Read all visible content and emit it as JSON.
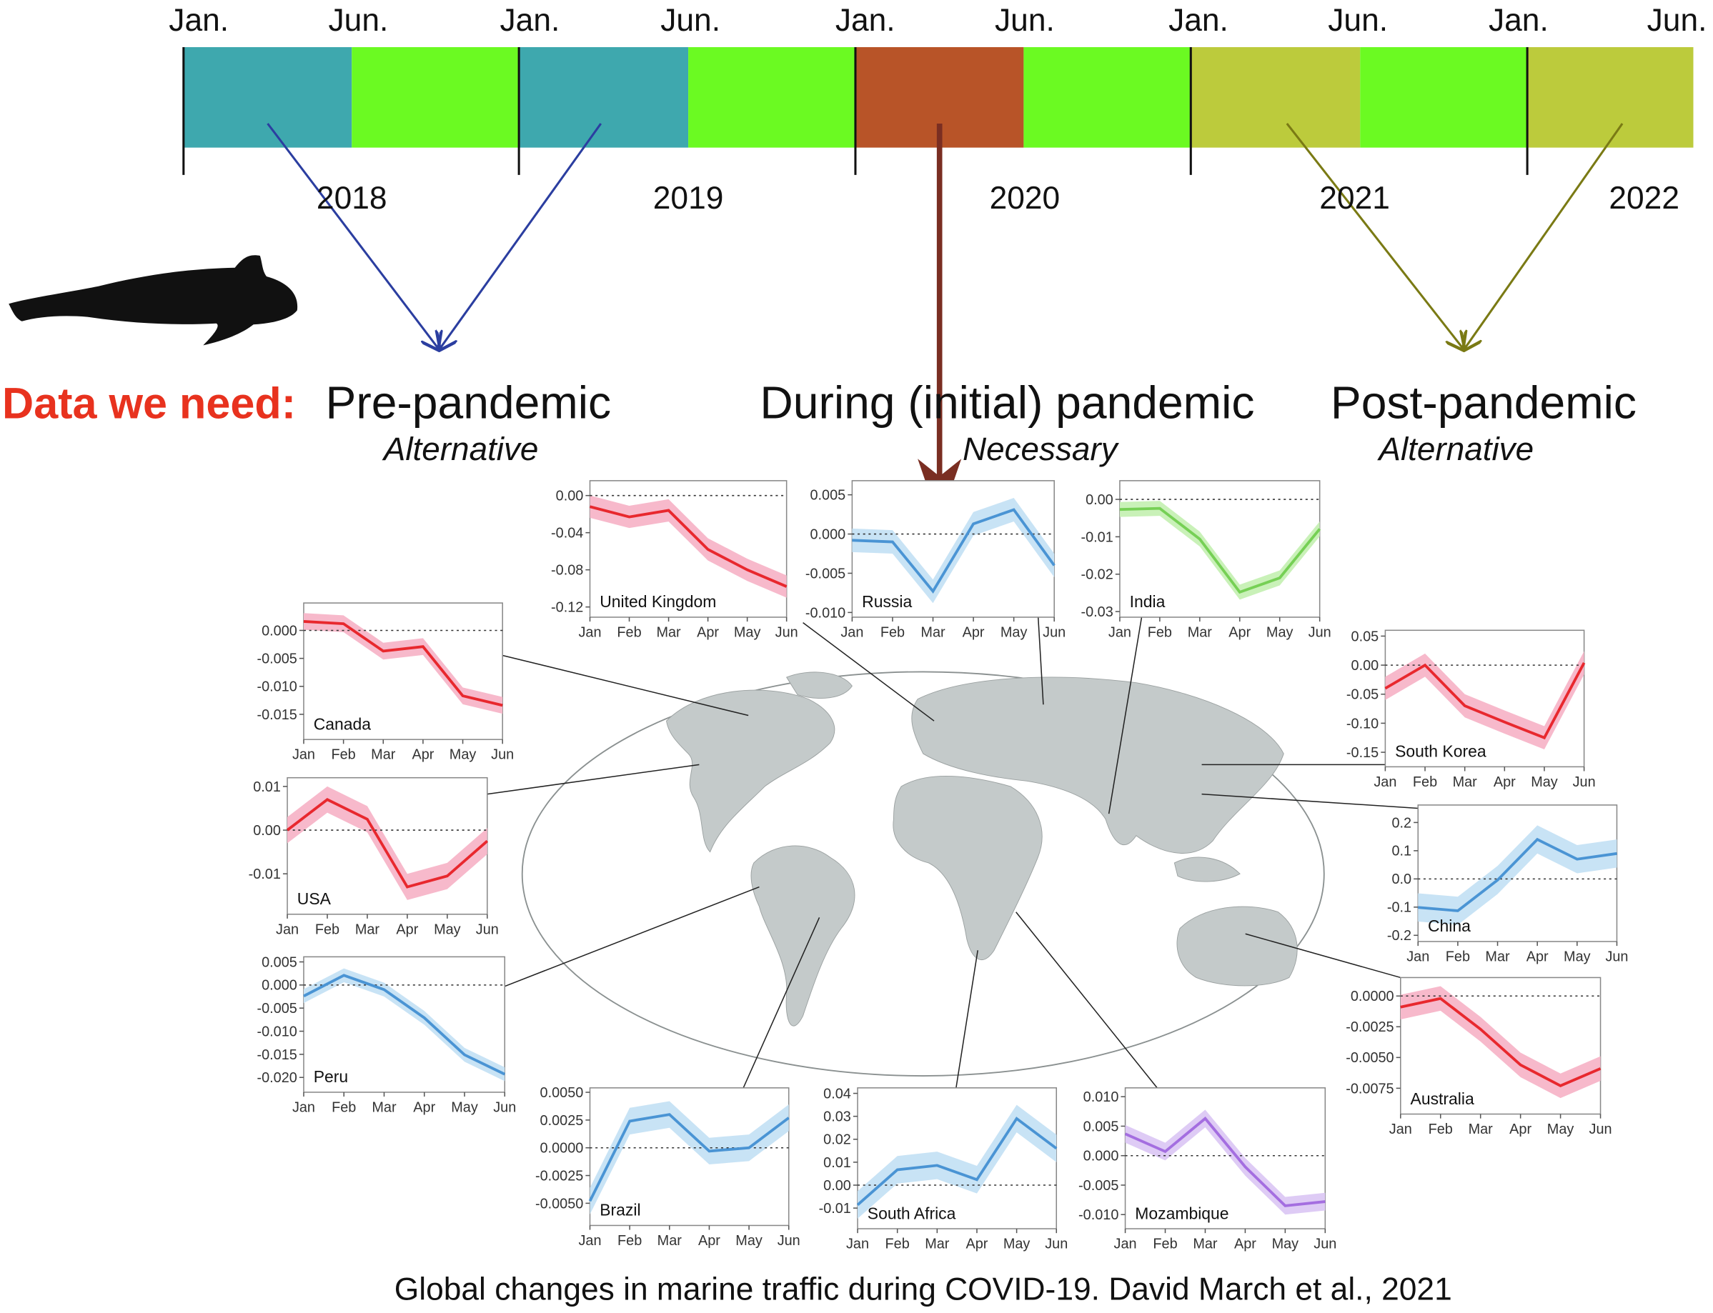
{
  "timeline": {
    "months": [
      "Jan.",
      "Jun.",
      "Jan.",
      "Jun.",
      "Jan.",
      "Jun.",
      "Jan.",
      "Jun.",
      "Jan.",
      "Jun."
    ],
    "years": [
      "2018",
      "2019",
      "2020",
      "2021",
      "2022"
    ]
  },
  "headings": {
    "need": "Data we need:",
    "pre": "Pre-pandemic",
    "pre_note": "Alternative",
    "during": "During (initial) pandemic",
    "during_note": "Necessary",
    "post": "Post-pandemic",
    "post_note": "Alternative"
  },
  "caption": "Global changes in marine traffic during COVID-19. David March et al., 2021",
  "chart_data": [
    {
      "type": "line",
      "title": "United Kingdom",
      "categories": [
        "Jan",
        "Feb",
        "Mar",
        "Apr",
        "May",
        "Jun"
      ],
      "ylim": [
        -0.131,
        0.016
      ],
      "yticks": [
        {
          "value": 0,
          "label": "0.00"
        },
        -0.04,
        -0.08,
        -0.12
      ],
      "series": [
        {
          "color": "#e8282e",
          "band_color": "#f7b9cb",
          "values": [
            -0.012,
            -0.023,
            -0.016,
            -0.058,
            -0.08,
            -0.098
          ],
          "upper": [
            0.0,
            -0.011,
            -0.004,
            -0.046,
            -0.068,
            -0.086
          ],
          "lower": [
            -0.024,
            -0.035,
            -0.028,
            -0.07,
            -0.092,
            -0.11
          ]
        }
      ]
    },
    {
      "type": "line",
      "title": "Russia",
      "categories": [
        "Jan",
        "Feb",
        "Mar",
        "Apr",
        "May",
        "Jun"
      ],
      "ylim": [
        -0.0106,
        0.0068
      ],
      "yticks": [
        0.005,
        {
          "value": 0,
          "label": "0.000"
        },
        -0.005,
        {
          "value": -0.01,
          "label": "-0.010"
        }
      ],
      "series": [
        {
          "color": "#4a94d4",
          "band_color": "#c8e3f5",
          "values": [
            -0.0008,
            -0.001,
            -0.0073,
            0.0013,
            0.0031,
            -0.004
          ],
          "upper": [
            0.0007,
            0.0005,
            -0.0058,
            0.0028,
            0.0046,
            -0.0025
          ],
          "lower": [
            -0.0023,
            -0.0025,
            -0.0088,
            -0.0002,
            0.0016,
            -0.0055
          ]
        }
      ]
    },
    {
      "type": "line",
      "title": "India",
      "categories": [
        "Jan",
        "Feb",
        "Mar",
        "Apr",
        "May",
        "Jun"
      ],
      "ylim": [
        -0.0315,
        0.005
      ],
      "yticks": [
        {
          "value": 0,
          "label": "0.00"
        },
        -0.01,
        -0.02,
        -0.03
      ],
      "series": [
        {
          "color": "#76d055",
          "band_color": "#c9f1b8",
          "values": [
            -0.0027,
            -0.0024,
            -0.0106,
            -0.0248,
            -0.021,
            -0.0079
          ],
          "upper": [
            -0.0007,
            -0.0004,
            -0.0086,
            -0.0228,
            -0.019,
            -0.0059
          ],
          "lower": [
            -0.0047,
            -0.0044,
            -0.0126,
            -0.0268,
            -0.023,
            -0.0099
          ]
        }
      ]
    },
    {
      "type": "line",
      "title": "Canada",
      "categories": [
        "Jan",
        "Feb",
        "Mar",
        "Apr",
        "May",
        "Jun"
      ],
      "ylim": [
        -0.0195,
        0.0049
      ],
      "yticks": [
        {
          "value": 0,
          "label": "0.000"
        },
        -0.005,
        {
          "value": -0.01,
          "label": "-0.010"
        },
        -0.015
      ],
      "series": [
        {
          "color": "#e8282e",
          "band_color": "#f7b9cb",
          "values": [
            0.0016,
            0.0012,
            -0.0037,
            -0.0029,
            -0.0117,
            -0.0134
          ],
          "upper": [
            0.0031,
            0.0027,
            -0.0022,
            -0.0014,
            -0.0102,
            -0.0119
          ],
          "lower": [
            0.0001,
            -0.0003,
            -0.0052,
            -0.0044,
            -0.0132,
            -0.0149
          ]
        }
      ]
    },
    {
      "type": "line",
      "title": "USA",
      "categories": [
        "Jan",
        "Feb",
        "Mar",
        "Apr",
        "May",
        "Jun"
      ],
      "ylim": [
        -0.01925,
        0.012
      ],
      "yticks": [
        0.01,
        {
          "value": 0,
          "label": "0.00"
        },
        -0.01
      ],
      "series": [
        {
          "color": "#e8282e",
          "band_color": "#f7b9cb",
          "values": [
            0,
            0.007,
            0.0025,
            -0.013,
            -0.0105,
            -0.0025
          ],
          "upper": [
            0.003,
            0.01,
            0.0055,
            -0.01,
            -0.0075,
            0.0005
          ],
          "lower": [
            -0.003,
            0.004,
            -0.0005,
            -0.016,
            -0.0135,
            -0.0055
          ]
        }
      ]
    },
    {
      "type": "line",
      "title": "Peru",
      "categories": [
        "Jan",
        "Feb",
        "Mar",
        "Apr",
        "May",
        "Jun"
      ],
      "ylim": [
        -0.0232,
        0.0061
      ],
      "yticks": [
        0.005,
        {
          "value": 0,
          "label": "0.000"
        },
        -0.005,
        {
          "value": -0.01,
          "label": "-0.010"
        },
        -0.015,
        {
          "value": -0.02,
          "label": "-0.020"
        }
      ],
      "series": [
        {
          "color": "#4a94d4",
          "band_color": "#c8e3f5",
          "values": [
            -0.0024,
            0.0021,
            -0.001,
            -0.0071,
            -0.0151,
            -0.0193
          ],
          "upper": [
            -0.0009,
            0.0036,
            0.0005,
            -0.0056,
            -0.0136,
            -0.0178
          ],
          "lower": [
            -0.0039,
            0.0006,
            -0.0025,
            -0.0086,
            -0.0166,
            -0.0208
          ]
        }
      ]
    },
    {
      "type": "line",
      "title": "Brazil",
      "categories": [
        "Jan",
        "Feb",
        "Mar",
        "Apr",
        "May",
        "Jun"
      ],
      "ylim": [
        -0.007,
        0.0054
      ],
      "yticks": [
        {
          "value": 0.005,
          "label": "0.0050"
        },
        0.0025,
        {
          "value": 0,
          "label": "0.0000"
        },
        -0.0025,
        {
          "value": -0.005,
          "label": "-0.0050"
        }
      ],
      "series": [
        {
          "color": "#4a94d4",
          "band_color": "#c8e3f5",
          "values": [
            -0.0048,
            0.0024,
            0.003,
            -0.0003,
            0,
            0.0027
          ],
          "upper": [
            -0.0036,
            0.0036,
            0.0042,
            0.0009,
            0.0012,
            0.0039
          ],
          "lower": [
            -0.006,
            0.0012,
            0.0018,
            -0.0015,
            -0.0012,
            0.0015
          ]
        }
      ]
    },
    {
      "type": "line",
      "title": "South Africa",
      "categories": [
        "Jan",
        "Feb",
        "Mar",
        "Apr",
        "May",
        "Jun"
      ],
      "ylim": [
        -0.019,
        0.0424
      ],
      "yticks": [
        0.04,
        0.03,
        0.02,
        0.01,
        {
          "value": 0,
          "label": "0.00"
        },
        -0.01
      ],
      "series": [
        {
          "color": "#4a94d4",
          "band_color": "#c8e3f5",
          "values": [
            -0.0086,
            0.0067,
            0.0086,
            0.0024,
            0.029,
            0.016
          ],
          "upper": [
            -0.0026,
            0.0127,
            0.0146,
            0.0084,
            0.035,
            0.022
          ],
          "lower": [
            -0.0146,
            0.0007,
            0.0026,
            -0.0036,
            0.023,
            0.01
          ]
        }
      ]
    },
    {
      "type": "line",
      "title": "Mozambique",
      "categories": [
        "Jan",
        "Feb",
        "Mar",
        "Apr",
        "May",
        "Jun"
      ],
      "ylim": [
        -0.0124,
        0.0115
      ],
      "yticks": [
        {
          "value": 0.01,
          "label": "0.010"
        },
        0.005,
        {
          "value": 0,
          "label": "0.000"
        },
        -0.005,
        {
          "value": -0.01,
          "label": "-0.010"
        }
      ],
      "series": [
        {
          "color": "#a46ee0",
          "band_color": "#decbf5",
          "values": [
            0.0037,
            0.0007,
            0.0063,
            -0.0019,
            -0.0085,
            -0.0078
          ],
          "upper": [
            0.0052,
            0.0022,
            0.0078,
            -0.0004,
            -0.007,
            -0.0063
          ],
          "lower": [
            0.0022,
            -0.0008,
            0.0048,
            -0.0034,
            -0.01,
            -0.0093
          ]
        }
      ]
    },
    {
      "type": "line",
      "title": "South Korea",
      "categories": [
        "Jan",
        "Feb",
        "Mar",
        "Apr",
        "May",
        "Jun"
      ],
      "ylim": [
        -0.175,
        0.06
      ],
      "yticks": [
        0.05,
        {
          "value": 0,
          "label": "0.00"
        },
        -0.05,
        {
          "value": -0.1,
          "label": "-0.10"
        },
        -0.15
      ],
      "series": [
        {
          "color": "#e8282e",
          "band_color": "#f7b9cb",
          "values": [
            -0.04,
            0,
            -0.07,
            -0.098,
            -0.125,
            0.004
          ],
          "upper": [
            -0.02,
            0.02,
            -0.05,
            -0.078,
            -0.105,
            0.024
          ],
          "lower": [
            -0.06,
            -0.02,
            -0.09,
            -0.118,
            -0.145,
            -0.016
          ]
        }
      ]
    },
    {
      "type": "line",
      "title": "China",
      "categories": [
        "Jan",
        "Feb",
        "Mar",
        "Apr",
        "May",
        "Jun"
      ],
      "ylim": [
        -0.222,
        0.262
      ],
      "yticks": [
        0.2,
        0.1,
        {
          "value": 0,
          "label": "0.0"
        },
        -0.1,
        -0.2
      ],
      "series": [
        {
          "color": "#4a94d4",
          "band_color": "#c8e3f5",
          "values": [
            -0.101,
            -0.113,
            -0.004,
            0.14,
            0.07,
            0.09
          ],
          "upper": [
            -0.051,
            -0.063,
            0.046,
            0.19,
            0.12,
            0.14
          ],
          "lower": [
            -0.151,
            -0.163,
            -0.054,
            0.09,
            0.02,
            0.04
          ]
        }
      ]
    },
    {
      "type": "line",
      "title": "Australia",
      "categories": [
        "Jan",
        "Feb",
        "Mar",
        "Apr",
        "May",
        "Jun"
      ],
      "ylim": [
        -0.0096,
        0.0015
      ],
      "yticks": [
        {
          "value": 0,
          "label": "0.0000"
        },
        -0.0025,
        {
          "value": -0.005,
          "label": "-0.0050"
        },
        -0.0075
      ],
      "series": [
        {
          "color": "#e8282e",
          "band_color": "#f7b9cb",
          "values": [
            -0.0009,
            -0.0002,
            -0.0027,
            -0.0056,
            -0.0073,
            -0.0059
          ],
          "upper": [
            0.0001,
            0.0008,
            -0.0017,
            -0.0046,
            -0.0063,
            -0.0049
          ],
          "lower": [
            -0.0019,
            -0.0012,
            -0.0037,
            -0.0066,
            -0.0083,
            -0.0069
          ]
        }
      ]
    }
  ]
}
